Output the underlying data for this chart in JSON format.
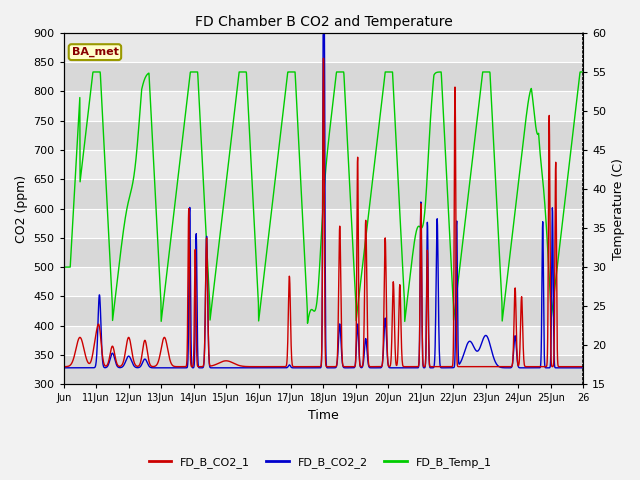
{
  "title": "FD Chamber B CO2 and Temperature",
  "xlabel": "Time",
  "ylabel_left": "CO2 (ppm)",
  "ylabel_right": "Temperature (C)",
  "ylim_left": [
    300,
    900
  ],
  "ylim_right": [
    15,
    60
  ],
  "yticks_left": [
    300,
    350,
    400,
    450,
    500,
    550,
    600,
    650,
    700,
    750,
    800,
    850,
    900
  ],
  "yticks_right": [
    15,
    20,
    25,
    30,
    35,
    40,
    45,
    50,
    55,
    60
  ],
  "xtick_labels": [
    "Jun",
    "11Jun",
    "12Jun",
    "13Jun",
    "14Jun",
    "15Jun",
    "16Jun",
    "17Jun",
    "18Jun",
    "19Jun",
    "20Jun",
    "21Jun",
    "22Jun",
    "23Jun",
    "24Jun",
    "25Jun",
    "26"
  ],
  "color_co2_1": "#cc0000",
  "color_co2_2": "#0000cc",
  "color_temp": "#00cc00",
  "legend_label_1": "FD_B_CO2_1",
  "legend_label_2": "FD_B_CO2_2",
  "legend_label_3": "FD_B_Temp_1",
  "annotation_text": "BA_met",
  "annotation_color": "#880000",
  "annotation_bg": "#ffffcc",
  "annotation_border": "#999900",
  "plot_bg_light": "#e8e8e8",
  "plot_bg_dark": "#d0d0d0",
  "figsize": [
    6.4,
    4.8
  ],
  "dpi": 100
}
